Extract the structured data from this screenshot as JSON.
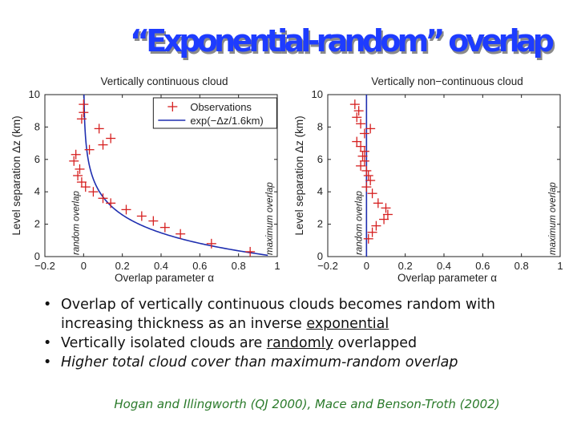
{
  "title": "“Exponential-random” overlap",
  "colors": {
    "title": "#1e3cff",
    "title_shadow": "#8a8a8a",
    "observations": "#d62020",
    "fit": "#1f2fb0",
    "citation": "#2a7a2a"
  },
  "chart_data": [
    {
      "type": "scatter",
      "title": "Vertically continuous cloud",
      "xlabel": "Overlap parameter α",
      "ylabel": "Level separation Δz (km)",
      "xlim": [
        -0.2,
        1
      ],
      "ylim": [
        0,
        10
      ],
      "xticks": [
        "−0.2",
        "0",
        "0.2",
        "0.4",
        "0.6",
        "0.8",
        "1"
      ],
      "yticks": [
        "0",
        "2",
        "4",
        "6",
        "8",
        "10"
      ],
      "legend": {
        "position": "top-right",
        "entries": [
          "Observations",
          "exp(−Δz/1.6km)"
        ]
      },
      "annotations": {
        "left": "random overlap",
        "right": "maximum overlap"
      },
      "series": [
        {
          "name": "Observations",
          "marker": "+",
          "points": [
            {
              "x": 0.0,
              "y": 9.4
            },
            {
              "x": 0.0,
              "y": 8.9
            },
            {
              "x": -0.01,
              "y": 8.5
            },
            {
              "x": 0.08,
              "y": 7.9
            },
            {
              "x": 0.14,
              "y": 7.3
            },
            {
              "x": 0.1,
              "y": 6.9
            },
            {
              "x": 0.03,
              "y": 6.6
            },
            {
              "x": -0.04,
              "y": 6.3
            },
            {
              "x": -0.05,
              "y": 5.9
            },
            {
              "x": -0.02,
              "y": 5.4
            },
            {
              "x": -0.03,
              "y": 5.0
            },
            {
              "x": -0.01,
              "y": 4.6
            },
            {
              "x": 0.01,
              "y": 4.3
            },
            {
              "x": 0.05,
              "y": 4.0
            },
            {
              "x": 0.1,
              "y": 3.6
            },
            {
              "x": 0.14,
              "y": 3.3
            },
            {
              "x": 0.22,
              "y": 2.9
            },
            {
              "x": 0.3,
              "y": 2.5
            },
            {
              "x": 0.36,
              "y": 2.2
            },
            {
              "x": 0.42,
              "y": 1.8
            },
            {
              "x": 0.5,
              "y": 1.4
            },
            {
              "x": 0.66,
              "y": 0.8
            },
            {
              "x": 0.86,
              "y": 0.3
            }
          ]
        },
        {
          "name": "exp(−Δz/1.6km)",
          "function": "exp(-dz/1.6)",
          "scale_km": 1.6
        }
      ]
    },
    {
      "type": "scatter",
      "title": "Vertically non−continuous cloud",
      "xlabel": "Overlap parameter α",
      "ylabel": "Level separation Δz (km)",
      "xlim": [
        -0.2,
        1
      ],
      "ylim": [
        0,
        10
      ],
      "xticks": [
        "−0.2",
        "0",
        "0.2",
        "0.4",
        "0.6",
        "0.8",
        "1"
      ],
      "yticks": [
        "0",
        "2",
        "4",
        "6",
        "8",
        "10"
      ],
      "annotations": {
        "left": "random overlap",
        "right": "maximum overlap"
      },
      "series": [
        {
          "name": "Observations",
          "marker": "+",
          "points": [
            {
              "x": -0.06,
              "y": 9.4
            },
            {
              "x": -0.04,
              "y": 9.0
            },
            {
              "x": -0.05,
              "y": 8.6
            },
            {
              "x": -0.03,
              "y": 8.2
            },
            {
              "x": 0.02,
              "y": 7.9
            },
            {
              "x": -0.01,
              "y": 7.6
            },
            {
              "x": -0.05,
              "y": 7.1
            },
            {
              "x": -0.03,
              "y": 6.8
            },
            {
              "x": -0.01,
              "y": 6.5
            },
            {
              "x": -0.02,
              "y": 6.2
            },
            {
              "x": -0.01,
              "y": 5.9
            },
            {
              "x": -0.03,
              "y": 5.6
            },
            {
              "x": 0.0,
              "y": 5.3
            },
            {
              "x": 0.01,
              "y": 5.0
            },
            {
              "x": 0.02,
              "y": 4.7
            },
            {
              "x": 0.0,
              "y": 4.3
            },
            {
              "x": 0.03,
              "y": 3.9
            },
            {
              "x": 0.06,
              "y": 3.3
            },
            {
              "x": 0.1,
              "y": 3.0
            },
            {
              "x": 0.11,
              "y": 2.6
            },
            {
              "x": 0.09,
              "y": 2.3
            },
            {
              "x": 0.05,
              "y": 1.9
            },
            {
              "x": 0.03,
              "y": 1.5
            },
            {
              "x": 0.01,
              "y": 1.1
            }
          ]
        },
        {
          "name": "",
          "line": "vertical",
          "x": 0
        }
      ]
    }
  ],
  "bullets": [
    {
      "parts": [
        {
          "text": "Overlap of vertically continuous clouds becomes random with increasing thickness as an inverse "
        },
        {
          "text": "exponential",
          "underline": true
        }
      ],
      "italic": false
    },
    {
      "parts": [
        {
          "text": "Vertically isolated clouds are "
        },
        {
          "text": "randomly",
          "underline": true
        },
        {
          "text": " overlapped"
        }
      ],
      "italic": false
    },
    {
      "parts": [
        {
          "text": "Higher total cloud cover than maximum-random overlap"
        }
      ],
      "italic": true
    }
  ],
  "bullet_symbol": "•",
  "citation": "Hogan and Illingworth (QJ 2000), Mace and Benson-Troth (2002)"
}
